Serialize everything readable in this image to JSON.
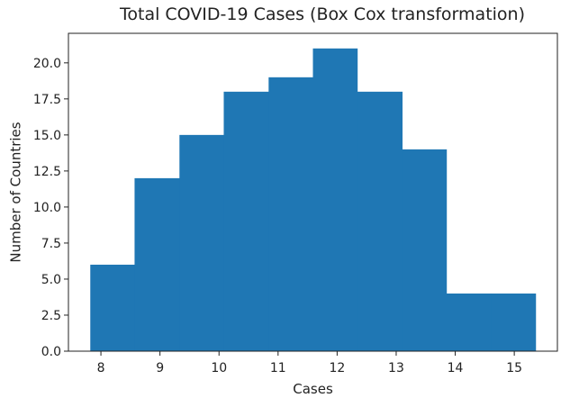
{
  "chart_data": {
    "type": "bar",
    "title": "Total COVID-19 Cases (Box Cox transformation)",
    "xlabel": "Cases",
    "ylabel": "Number of Countries",
    "bins": [
      {
        "start": 7.82,
        "end": 8.57,
        "count": 6
      },
      {
        "start": 8.57,
        "end": 9.33,
        "count": 12
      },
      {
        "start": 9.33,
        "end": 10.08,
        "count": 15
      },
      {
        "start": 10.08,
        "end": 10.84,
        "count": 18
      },
      {
        "start": 10.84,
        "end": 11.59,
        "count": 19
      },
      {
        "start": 11.59,
        "end": 12.34,
        "count": 21
      },
      {
        "start": 12.34,
        "end": 13.1,
        "count": 18
      },
      {
        "start": 13.1,
        "end": 13.85,
        "count": 14
      },
      {
        "start": 13.85,
        "end": 14.61,
        "count": 4
      },
      {
        "start": 14.61,
        "end": 15.36,
        "count": 4
      }
    ],
    "xlim": [
      7.45,
      15.73
    ],
    "ylim": [
      0,
      22.05
    ],
    "xticks": [
      8,
      9,
      10,
      11,
      12,
      13,
      14,
      15
    ],
    "yticks": [
      0,
      2.5,
      5,
      7.5,
      10,
      12.5,
      15,
      17.5,
      20
    ],
    "ytick_labels": [
      "0.0",
      "2.5",
      "5.0",
      "7.5",
      "10.0",
      "12.5",
      "15.0",
      "17.5",
      "20.0"
    ],
    "bar_color": "#1f77b4",
    "grid": false
  }
}
